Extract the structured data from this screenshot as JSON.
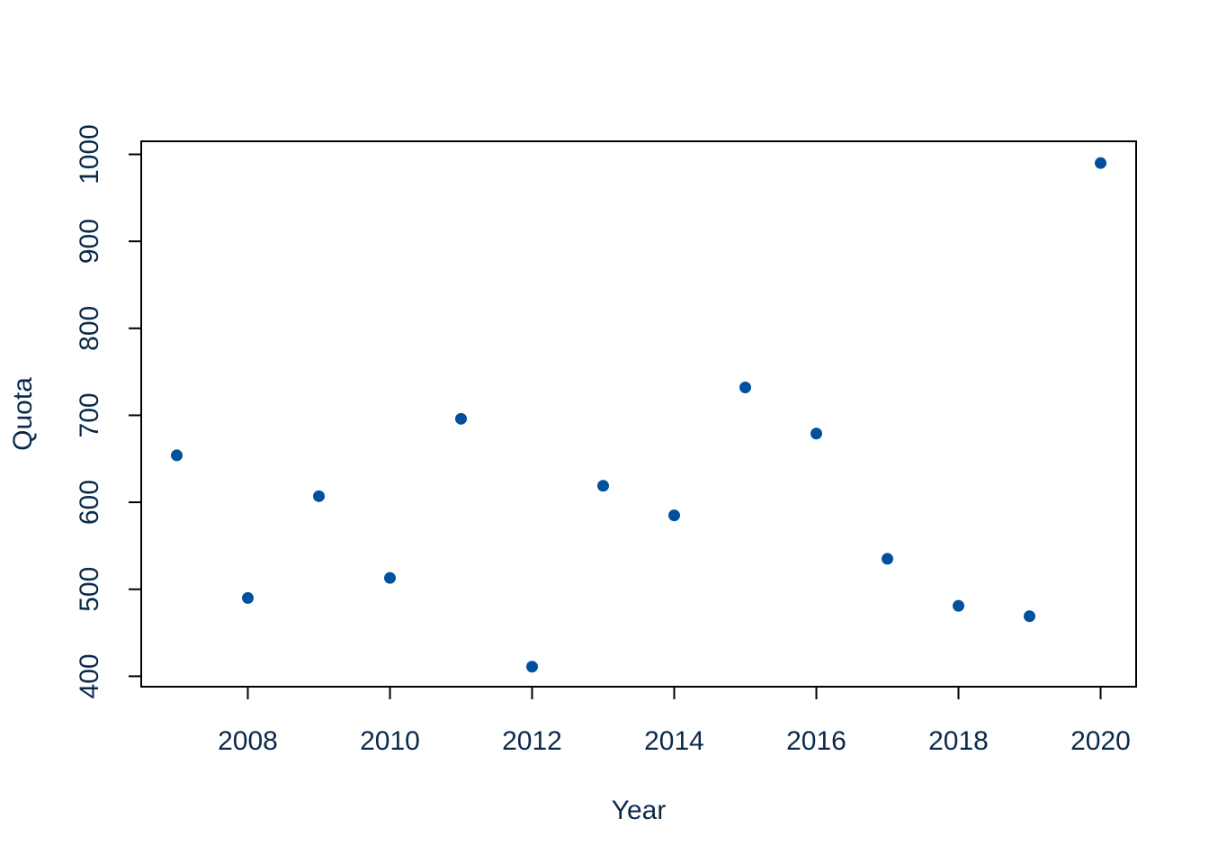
{
  "chart_data": {
    "type": "scatter",
    "title": "",
    "xlabel": "Year",
    "ylabel": "Quota",
    "x": [
      2007,
      2008,
      2009,
      2010,
      2011,
      2012,
      2013,
      2014,
      2015,
      2016,
      2017,
      2018,
      2019,
      2020
    ],
    "y": [
      654,
      490,
      607,
      513,
      696,
      411,
      619,
      585,
      732,
      679,
      535,
      481,
      469,
      990
    ],
    "xlim": [
      2006.5,
      2020.5
    ],
    "ylim": [
      388,
      1015
    ],
    "xticks": [
      2008,
      2010,
      2012,
      2014,
      2016,
      2018,
      2020
    ],
    "yticks": [
      400,
      500,
      600,
      700,
      800,
      900,
      1000
    ],
    "xtick_labels": [
      "2008",
      "2010",
      "2012",
      "2014",
      "2016",
      "2018",
      "2020"
    ],
    "ytick_labels": [
      "400",
      "500",
      "600",
      "700",
      "800",
      "900",
      "1000"
    ],
    "grid": false,
    "point_color": "#00509e",
    "text_color": "#0b2a4a"
  }
}
